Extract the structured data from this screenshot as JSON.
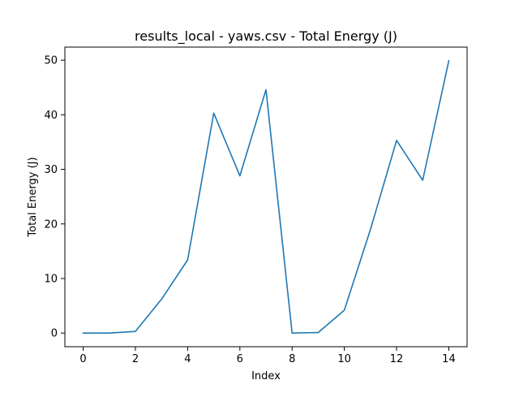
{
  "chart_data": {
    "type": "line",
    "title": "results_local - yaws.csv - Total Energy (J)",
    "xlabel": "Index",
    "ylabel": "Total Energy (J)",
    "x": [
      0,
      1,
      2,
      3,
      4,
      5,
      6,
      7,
      8,
      9,
      10,
      11,
      12,
      13,
      14
    ],
    "series": [
      {
        "color": "#1f77b4",
        "values": [
          0.0,
          0.0,
          0.3,
          6.2,
          13.4,
          40.3,
          28.8,
          44.6,
          0.0,
          0.1,
          4.2,
          19.0,
          35.3,
          28.0,
          49.9
        ]
      }
    ],
    "xlim": [
      -0.7,
      14.7
    ],
    "ylim": [
      -2.5,
      52.4
    ],
    "xticks": [
      0,
      2,
      4,
      6,
      8,
      10,
      12,
      14
    ],
    "yticks": [
      0,
      10,
      20,
      30,
      40,
      50
    ],
    "grid": false,
    "legend": "none"
  }
}
